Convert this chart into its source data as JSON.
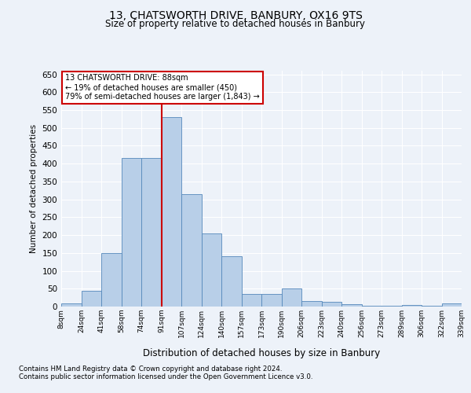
{
  "title1": "13, CHATSWORTH DRIVE, BANBURY, OX16 9TS",
  "title2": "Size of property relative to detached houses in Banbury",
  "xlabel": "Distribution of detached houses by size in Banbury",
  "ylabel": "Number of detached properties",
  "categories": [
    "8sqm",
    "24sqm",
    "41sqm",
    "58sqm",
    "74sqm",
    "91sqm",
    "107sqm",
    "124sqm",
    "140sqm",
    "157sqm",
    "173sqm",
    "190sqm",
    "206sqm",
    "223sqm",
    "240sqm",
    "256sqm",
    "273sqm",
    "289sqm",
    "306sqm",
    "322sqm",
    "339sqm"
  ],
  "values": [
    8,
    45,
    150,
    415,
    415,
    530,
    315,
    205,
    140,
    35,
    35,
    50,
    15,
    13,
    7,
    3,
    3,
    5,
    3,
    8
  ],
  "bar_color": "#b8cfe8",
  "bar_edge_color": "#5588bb",
  "vline_color": "#cc0000",
  "vline_index": 5,
  "annotation_text": "13 CHATSWORTH DRIVE: 88sqm\n← 19% of detached houses are smaller (450)\n79% of semi-detached houses are larger (1,843) →",
  "ylim": [
    0,
    660
  ],
  "yticks": [
    0,
    50,
    100,
    150,
    200,
    250,
    300,
    350,
    400,
    450,
    500,
    550,
    600,
    650
  ],
  "footnote1": "Contains HM Land Registry data © Crown copyright and database right 2024.",
  "footnote2": "Contains public sector information licensed under the Open Government Licence v3.0.",
  "background_color": "#edf2f9",
  "grid_color": "#ffffff"
}
